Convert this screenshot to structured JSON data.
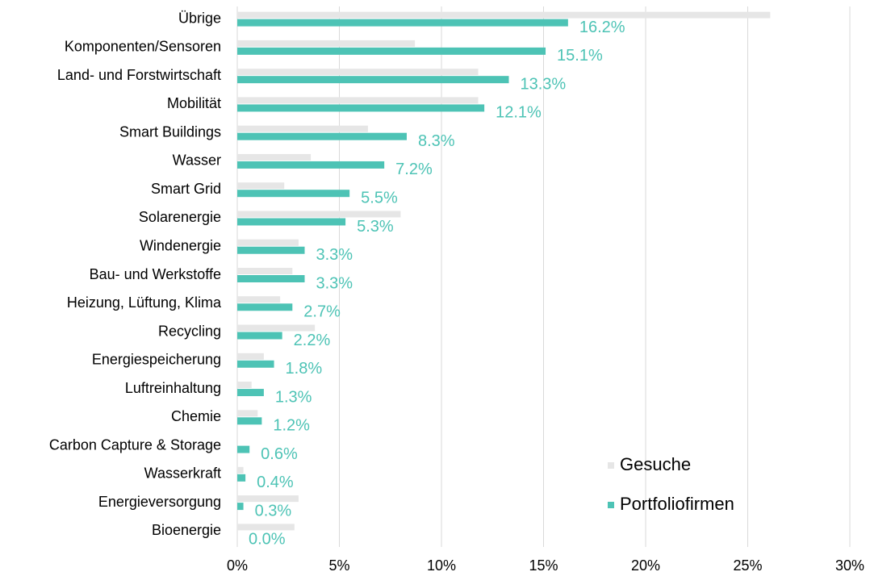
{
  "chart_data": {
    "type": "hbar",
    "categories": [
      "Übrige",
      "Komponenten/Sensoren",
      "Land- und Forstwirtschaft",
      "Mobilität",
      "Smart Buildings",
      "Wasser",
      "Smart Grid",
      "Solarenergie",
      "Windenergie",
      "Bau- und Werkstoffe",
      "Heizung, Lüftung, Klima",
      "Recycling",
      "Energiespeicherung",
      "Luftreinhaltung",
      "Chemie",
      "Carbon Capture & Storage",
      "Wasserkraft",
      "Energieversorgung",
      "Bioenergie"
    ],
    "series": [
      {
        "name": "Gesuche",
        "color": "#e6e6e6",
        "values": [
          26.1,
          8.7,
          11.8,
          11.8,
          6.4,
          3.6,
          2.3,
          8.0,
          3.0,
          2.7,
          2.1,
          3.8,
          1.3,
          0.7,
          1.0,
          0,
          0.3,
          3.0,
          2.8
        ]
      },
      {
        "name": "Portfoliofirmen",
        "color": "#4dc3b5",
        "values": [
          16.2,
          15.1,
          13.3,
          12.1,
          8.3,
          7.2,
          5.5,
          5.3,
          3.3,
          3.3,
          2.7,
          2.2,
          1.8,
          1.3,
          1.2,
          0.6,
          0.4,
          0.3,
          0
        ],
        "value_labels": [
          "16.2%",
          "15.1%",
          "13.3%",
          "12.1%",
          "8.3%",
          "7.2%",
          "5.5%",
          "5.3%",
          "3.3%",
          "3.3%",
          "2.7%",
          "2.2%",
          "1.8%",
          "1.3%",
          "1.2%",
          "0.6%",
          "0.4%",
          "0.3%",
          "0.0%"
        ]
      }
    ],
    "xlim": [
      0,
      30
    ],
    "xticks": [
      {
        "value": 0,
        "label": "0%"
      },
      {
        "value": 5,
        "label": "5%"
      },
      {
        "value": 10,
        "label": "10%"
      },
      {
        "value": 15,
        "label": "15%"
      },
      {
        "value": 20,
        "label": "20%"
      },
      {
        "value": 25,
        "label": "25%"
      },
      {
        "value": 30,
        "label": "30%"
      }
    ],
    "grid": true,
    "legend": "lower right"
  }
}
